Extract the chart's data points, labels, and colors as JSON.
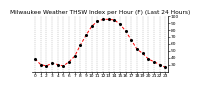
{
  "title": "Milwaukee Weather THSW Index per Hour (F) (Last 24 Hours)",
  "hours": [
    0,
    1,
    2,
    3,
    4,
    5,
    6,
    7,
    8,
    9,
    10,
    11,
    12,
    13,
    14,
    15,
    16,
    17,
    18,
    19,
    20,
    21,
    22,
    23
  ],
  "values": [
    38,
    30,
    28,
    32,
    30,
    28,
    34,
    42,
    58,
    72,
    85,
    92,
    95,
    95,
    94,
    88,
    78,
    65,
    52,
    46,
    38,
    34,
    30,
    26
  ],
  "ylim": [
    20,
    100
  ],
  "yticks": [
    30,
    40,
    50,
    60,
    70,
    80,
    90,
    100
  ],
  "ytick_labels": [
    "30",
    "40",
    "50",
    "60",
    "70",
    "80",
    "90",
    "100"
  ],
  "line_color": "#ff0000",
  "dot_color": "#000000",
  "grid_color": "#888888",
  "bg_color": "#ffffff",
  "title_color": "#000000",
  "title_fontsize": 4.2,
  "tick_fontsize": 3.2
}
